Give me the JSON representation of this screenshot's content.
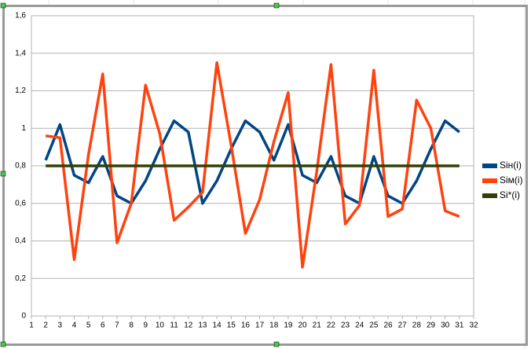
{
  "chart_data": {
    "type": "line",
    "x": [
      2,
      3,
      4,
      5,
      6,
      7,
      8,
      9,
      10,
      11,
      12,
      13,
      14,
      15,
      16,
      17,
      18,
      19,
      20,
      21,
      22,
      23,
      24,
      25,
      26,
      27,
      28,
      29,
      30,
      31
    ],
    "series": [
      {
        "name": "Siн(i)",
        "color": "#004586",
        "values": [
          0.83,
          1.02,
          0.75,
          0.71,
          0.85,
          0.64,
          0.6,
          0.72,
          0.89,
          1.04,
          0.98,
          0.6,
          0.72,
          0.89,
          1.04,
          0.98,
          0.83,
          1.02,
          0.75,
          0.71,
          0.85,
          0.64,
          0.6,
          0.85,
          0.64,
          0.6,
          0.72,
          0.89,
          1.04,
          0.98
        ]
      },
      {
        "name": "Siм(i)",
        "color": "#ff420e",
        "values": [
          0.96,
          0.95,
          0.3,
          0.86,
          1.29,
          0.39,
          0.6,
          1.23,
          0.97,
          0.51,
          0.58,
          0.66,
          1.35,
          0.91,
          0.44,
          0.62,
          0.93,
          1.19,
          0.26,
          0.77,
          1.34,
          0.49,
          0.59,
          1.31,
          0.53,
          0.57,
          1.15,
          1.0,
          0.56,
          0.53
        ]
      },
      {
        "name": "Si*(i)",
        "color": "#314004",
        "values": [
          0.8,
          0.8,
          0.8,
          0.8,
          0.8,
          0.8,
          0.8,
          0.8,
          0.8,
          0.8,
          0.8,
          0.8,
          0.8,
          0.8,
          0.8,
          0.8,
          0.8,
          0.8,
          0.8,
          0.8,
          0.8,
          0.8,
          0.8,
          0.8,
          0.8,
          0.8,
          0.8,
          0.8,
          0.8,
          0.8
        ]
      }
    ],
    "xlim": [
      1,
      32
    ],
    "xticks": [
      1,
      2,
      3,
      4,
      5,
      6,
      7,
      8,
      9,
      10,
      11,
      12,
      13,
      14,
      15,
      16,
      17,
      18,
      19,
      20,
      21,
      22,
      23,
      24,
      25,
      26,
      27,
      28,
      29,
      30,
      31,
      32
    ],
    "ylim": [
      0,
      1.6
    ],
    "yticks": [
      0,
      {
        "value": 0.2,
        "label": "0,2"
      },
      {
        "value": 0.4,
        "label": "0,4"
      },
      {
        "value": 0.6,
        "label": "0,6"
      },
      {
        "value": 0.8,
        "label": "0,8"
      },
      1,
      {
        "value": 1.2,
        "label": "1,2"
      },
      {
        "value": 1.4,
        "label": "1,4"
      },
      {
        "value": 1.6,
        "label": "1,6"
      }
    ],
    "grid": true,
    "legend": "right"
  }
}
